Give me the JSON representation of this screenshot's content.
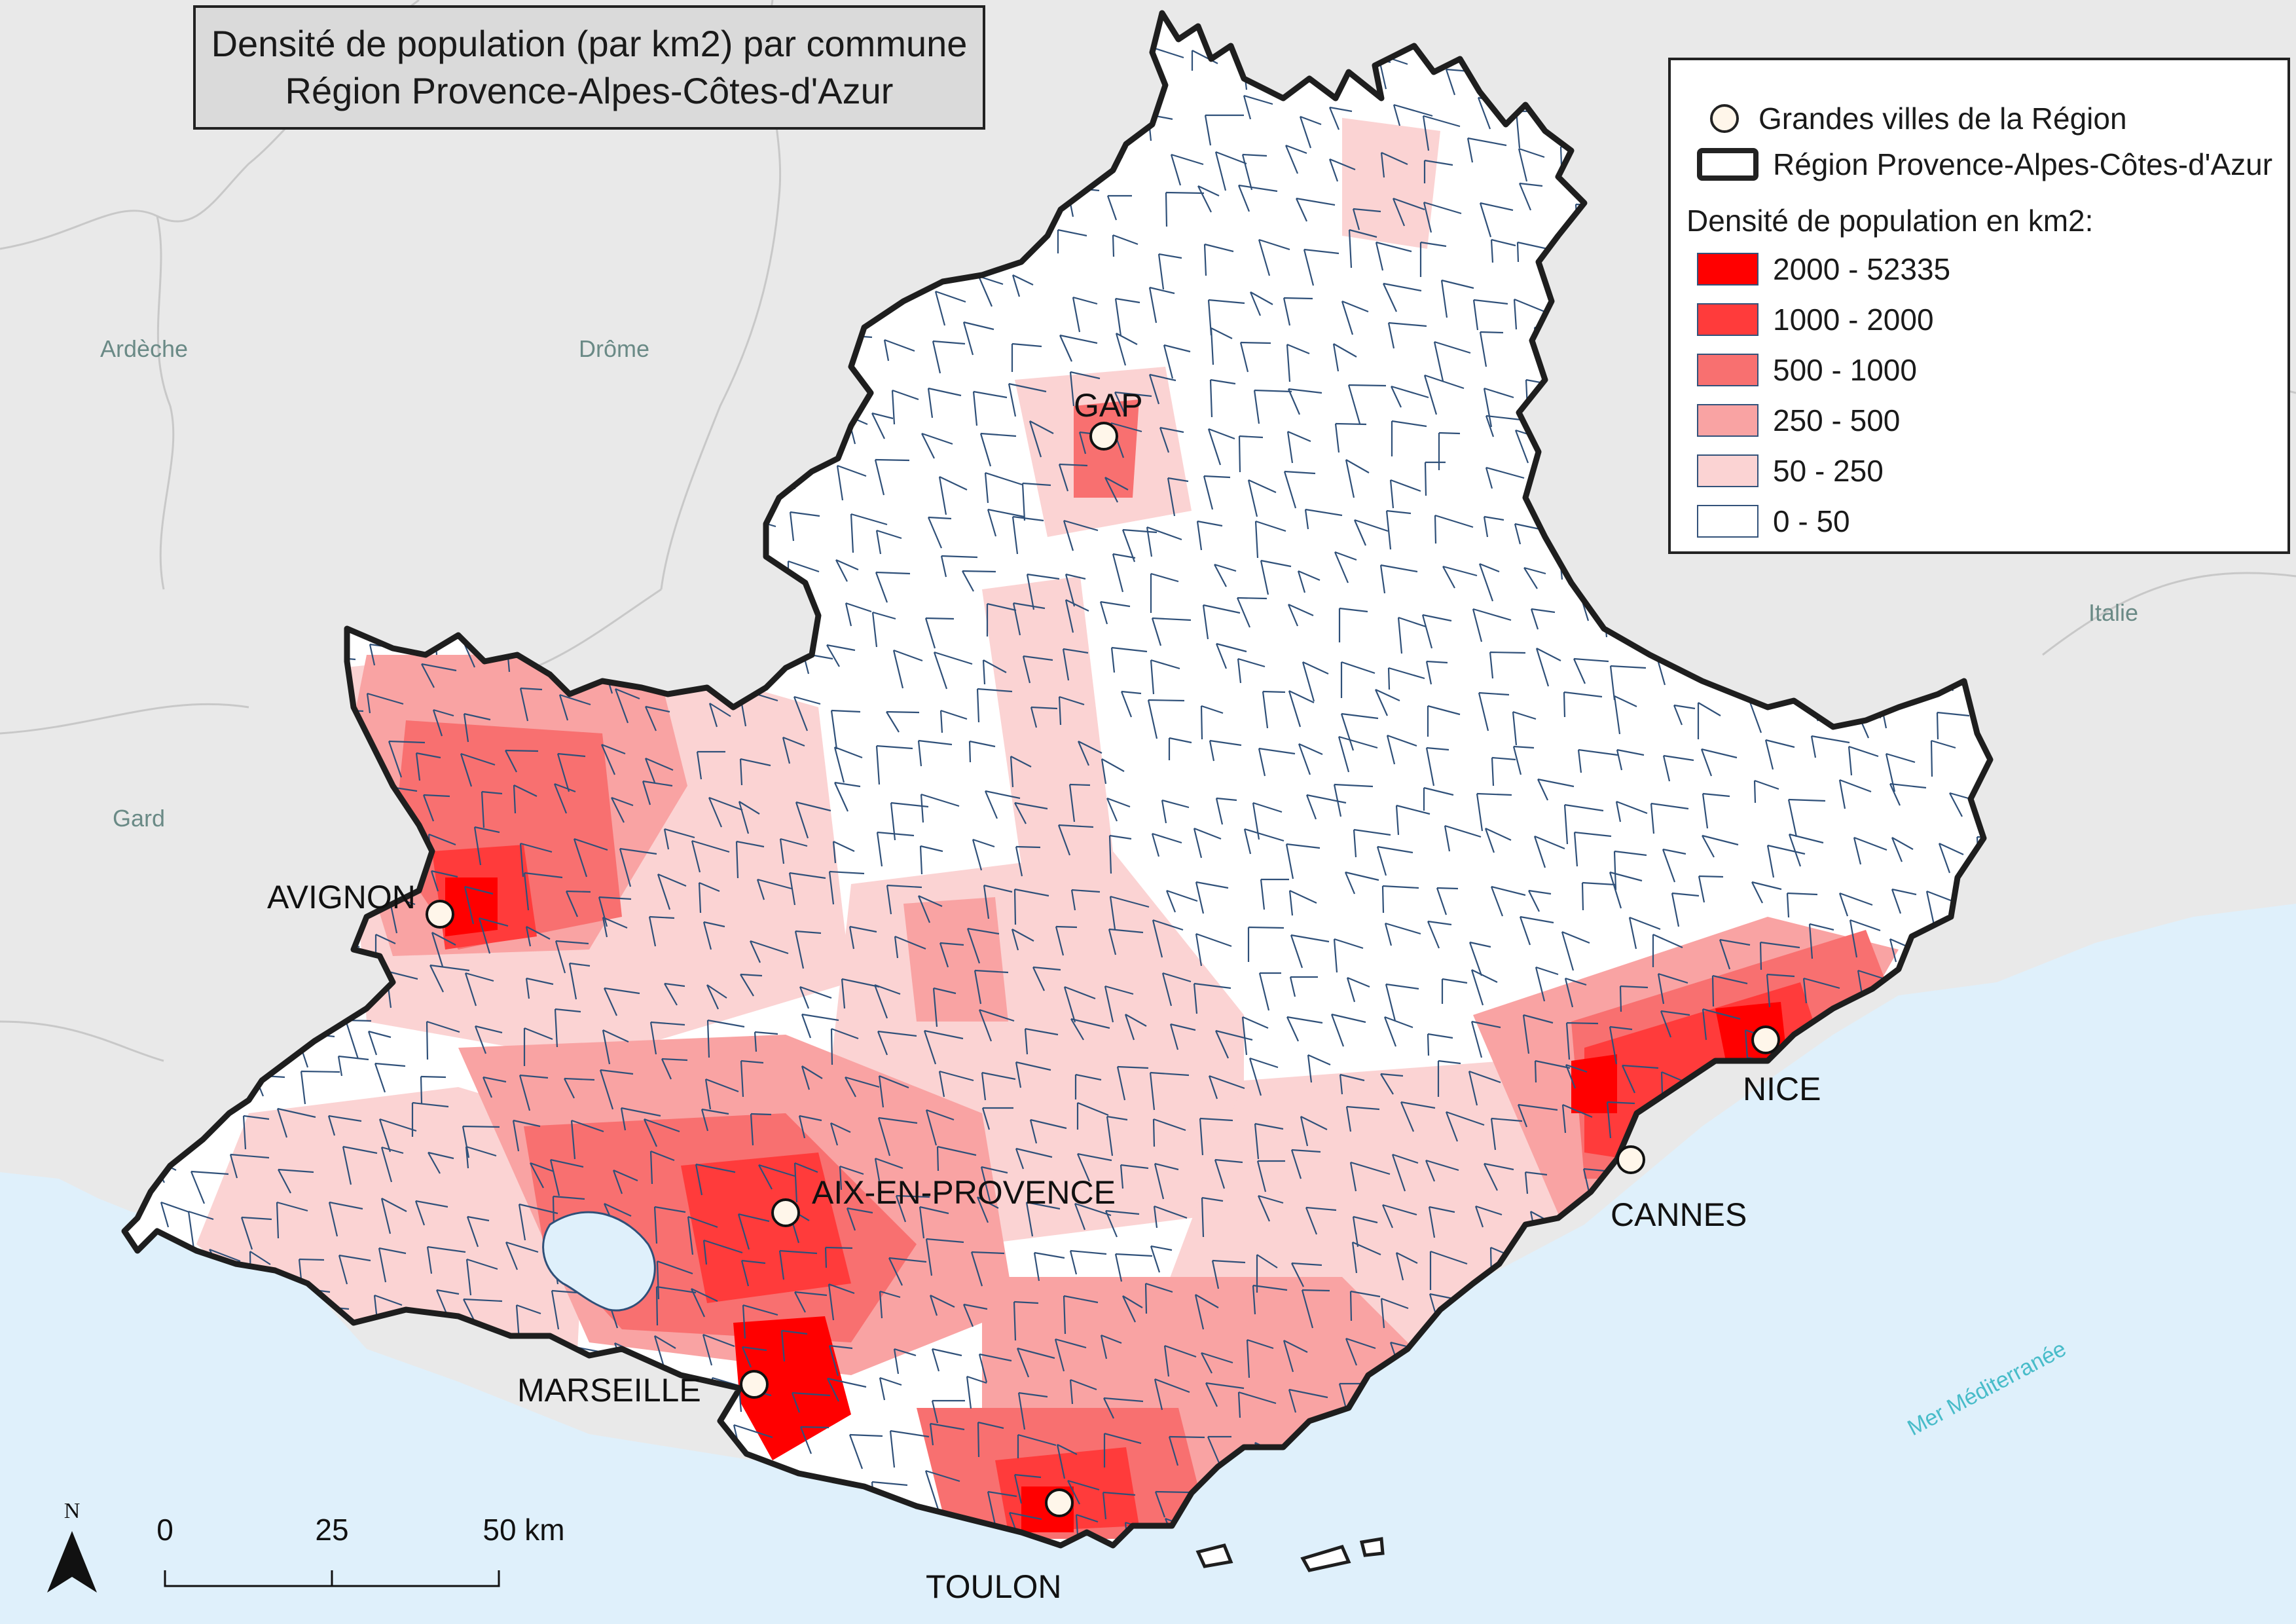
{
  "title": {
    "line1": "Densité de population (par km2) par commune",
    "line2": "Région Provence-Alpes-Côtes-d'Azur"
  },
  "legend": {
    "cities_label": "Grandes villes de la Région",
    "region_label": "Région Provence-Alpes-Côtes-d'Azur",
    "density_heading": "Densité de population en km2:",
    "classes": [
      {
        "label": "2000 - 52335",
        "color": "#ff0000"
      },
      {
        "label": "1000 - 2000",
        "color": "#ff3b3b"
      },
      {
        "label": "500 - 1000",
        "color": "#f87070"
      },
      {
        "label": "250 - 500",
        "color": "#f9a3a3"
      },
      {
        "label": "50 - 250",
        "color": "#fbd3d3"
      },
      {
        "label": "0 - 50",
        "color": "#ffffff"
      }
    ]
  },
  "cities": [
    {
      "name": "GAP"
    },
    {
      "name": "AVIGNON"
    },
    {
      "name": "NICE"
    },
    {
      "name": "CANNES"
    },
    {
      "name": "AIX-EN-PROVENCE"
    },
    {
      "name": "MARSEILLE"
    },
    {
      "name": "TOULON"
    }
  ],
  "neighbours": {
    "ardeche": "Ardèche",
    "drome": "Drôme",
    "gard": "Gard",
    "italie": "Italie",
    "sea": "Mer Méditerranée"
  },
  "scale_bar": {
    "t0": "0",
    "t1": "25",
    "t2": "50 km"
  },
  "north_label": "N",
  "colors": {
    "sea": "#dff0fb",
    "land": "#e9e9e9",
    "region_border": "#1e1e1e",
    "commune_border": "#2f5079"
  }
}
